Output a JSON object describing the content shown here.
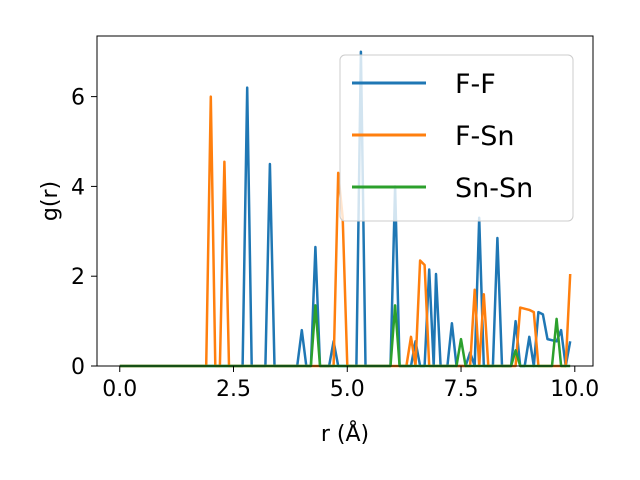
{
  "chart_data": {
    "type": "line",
    "title": "",
    "xlabel": "r (Å)",
    "ylabel": "g(r)",
    "xlim": [
      -0.5,
      10.4
    ],
    "ylim": [
      0,
      7.35
    ],
    "xticks": [
      0.0,
      2.5,
      5.0,
      7.5,
      10.0
    ],
    "xtick_labels": [
      "0.0",
      "2.5",
      "5.0",
      "7.5",
      "10.0"
    ],
    "yticks": [
      0,
      2,
      4,
      6
    ],
    "ytick_labels": [
      "0",
      "2",
      "4",
      "6"
    ],
    "grid": false,
    "legend_position": "top-right",
    "series": [
      {
        "name": "F-F",
        "color": "#1f77b4",
        "points": [
          [
            0.0,
            0
          ],
          [
            2.6,
            0
          ],
          [
            2.7,
            0
          ],
          [
            2.8,
            6.2
          ],
          [
            2.9,
            0
          ],
          [
            3.2,
            0
          ],
          [
            3.3,
            4.5
          ],
          [
            3.4,
            0
          ],
          [
            3.9,
            0
          ],
          [
            4.0,
            0.8
          ],
          [
            4.1,
            0
          ],
          [
            4.2,
            0
          ],
          [
            4.3,
            2.65
          ],
          [
            4.4,
            0
          ],
          [
            4.6,
            0
          ],
          [
            4.7,
            0.55
          ],
          [
            4.8,
            0
          ],
          [
            5.2,
            0
          ],
          [
            5.3,
            7.0
          ],
          [
            5.4,
            0
          ],
          [
            5.95,
            0
          ],
          [
            6.05,
            4.0
          ],
          [
            6.15,
            0
          ],
          [
            6.4,
            0
          ],
          [
            6.5,
            0.55
          ],
          [
            6.6,
            0
          ],
          [
            6.7,
            0
          ],
          [
            6.8,
            2.15
          ],
          [
            6.9,
            0
          ],
          [
            6.95,
            2.05
          ],
          [
            7.05,
            0
          ],
          [
            7.2,
            0
          ],
          [
            7.3,
            0.95
          ],
          [
            7.4,
            0
          ],
          [
            7.6,
            0
          ],
          [
            7.7,
            0.3
          ],
          [
            7.8,
            0
          ],
          [
            7.9,
            3.3
          ],
          [
            8.0,
            0
          ],
          [
            8.2,
            0
          ],
          [
            8.3,
            2.85
          ],
          [
            8.4,
            0
          ],
          [
            8.6,
            0
          ],
          [
            8.7,
            1.0
          ],
          [
            8.8,
            0
          ],
          [
            8.9,
            0
          ],
          [
            9.0,
            0.65
          ],
          [
            9.1,
            0
          ],
          [
            9.2,
            1.2
          ],
          [
            9.3,
            1.15
          ],
          [
            9.4,
            0.6
          ],
          [
            9.6,
            0.55
          ],
          [
            9.7,
            0.8
          ],
          [
            9.8,
            0
          ],
          [
            9.9,
            0.55
          ]
        ]
      },
      {
        "name": "F-Sn",
        "color": "#ff7f0e",
        "points": [
          [
            0.0,
            0
          ],
          [
            1.9,
            0
          ],
          [
            2.0,
            6.0
          ],
          [
            2.1,
            0
          ],
          [
            2.2,
            0
          ],
          [
            2.3,
            4.55
          ],
          [
            2.4,
            0
          ],
          [
            4.7,
            0
          ],
          [
            4.8,
            4.3
          ],
          [
            4.9,
            3.3
          ],
          [
            5.0,
            0
          ],
          [
            6.3,
            0
          ],
          [
            6.4,
            0.65
          ],
          [
            6.5,
            0
          ],
          [
            6.6,
            2.35
          ],
          [
            6.7,
            2.25
          ],
          [
            6.8,
            0
          ],
          [
            7.7,
            0
          ],
          [
            7.8,
            1.7
          ],
          [
            7.9,
            0
          ],
          [
            8.0,
            1.6
          ],
          [
            8.1,
            0
          ],
          [
            8.7,
            0
          ],
          [
            8.8,
            1.3
          ],
          [
            9.0,
            1.25
          ],
          [
            9.1,
            1.2
          ],
          [
            9.2,
            0
          ],
          [
            9.8,
            0
          ],
          [
            9.9,
            2.05
          ]
        ]
      },
      {
        "name": "Sn-Sn",
        "color": "#2ca02c",
        "points": [
          [
            0.0,
            0
          ],
          [
            4.2,
            0
          ],
          [
            4.3,
            1.35
          ],
          [
            4.4,
            0
          ],
          [
            5.95,
            0
          ],
          [
            6.05,
            1.35
          ],
          [
            6.15,
            0
          ],
          [
            7.4,
            0
          ],
          [
            7.5,
            0.6
          ],
          [
            7.6,
            0
          ],
          [
            8.6,
            0
          ],
          [
            8.7,
            0.35
          ],
          [
            8.8,
            0
          ],
          [
            9.5,
            0
          ],
          [
            9.6,
            1.05
          ],
          [
            9.7,
            0
          ],
          [
            9.9,
            0
          ]
        ]
      }
    ]
  }
}
